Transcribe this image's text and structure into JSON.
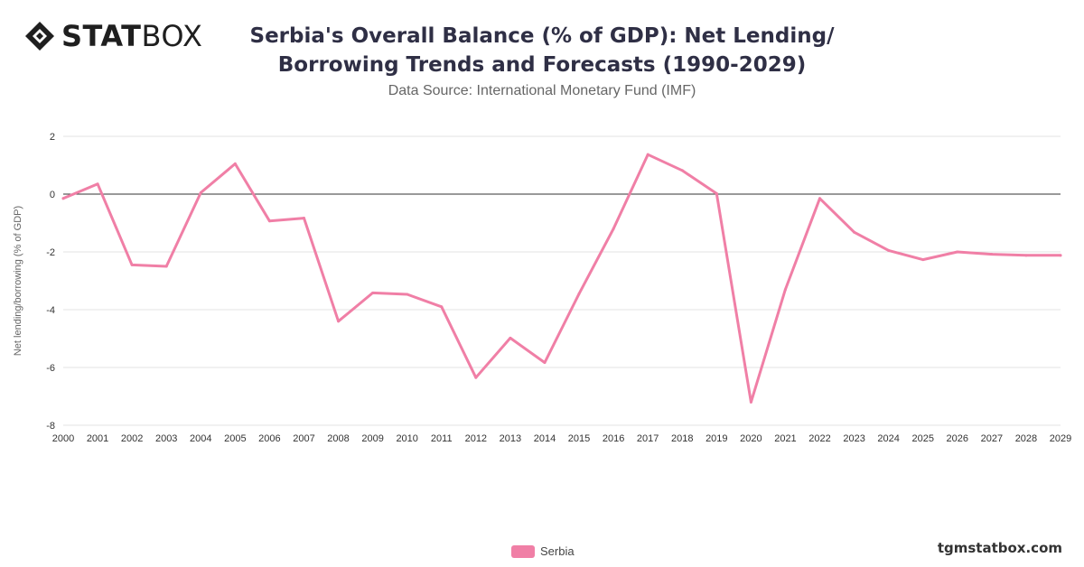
{
  "header": {
    "brand_bold": "STAT",
    "brand_light": "BOX",
    "title": "Serbia's Overall Balance (% of GDP): Net Lending/ Borrowing Trends and Forecasts (1990-2029)",
    "subtitle": "Data Source: International Monetary Fund (IMF)"
  },
  "footer": {
    "site": "tgmstatbox.com"
  },
  "colors": {
    "series": "#f07fa6",
    "grid": "#e3e3e3",
    "zero_line": "#333333",
    "axis_text": "#333333"
  },
  "chart_data": {
    "type": "line",
    "title": "Serbia's Overall Balance (% of GDP): Net Lending/ Borrowing Trends and Forecasts (1990-2029)",
    "ylabel": "Net lending/borrowing (% of GDP)",
    "xlabel": "",
    "ylim": [
      -8,
      2
    ],
    "yticks": [
      2,
      0,
      -2,
      -4,
      -6,
      -8
    ],
    "grid": true,
    "legend_position": "bottom-center",
    "x": [
      "2000",
      "2001",
      "2002",
      "2003",
      "2004",
      "2005",
      "2006",
      "2007",
      "2008",
      "2009",
      "2010",
      "2011",
      "2012",
      "2013",
      "2014",
      "2015",
      "2016",
      "2017",
      "2018",
      "2019",
      "2020",
      "2021",
      "2022",
      "2023",
      "2024",
      "2025",
      "2026",
      "2027",
      "2028",
      "2029"
    ],
    "series": [
      {
        "name": "Serbia",
        "values": [
          -0.15,
          0.35,
          -2.45,
          -2.5,
          0.05,
          1.05,
          -0.93,
          -0.83,
          -4.4,
          -3.42,
          -3.47,
          -3.9,
          -6.35,
          -4.98,
          -5.83,
          -3.45,
          -1.2,
          1.37,
          0.82,
          0.02,
          -7.2,
          -3.3,
          -0.15,
          -1.32,
          -1.95,
          -2.27,
          -2.0,
          -2.08,
          -2.12,
          -2.12
        ]
      }
    ]
  }
}
